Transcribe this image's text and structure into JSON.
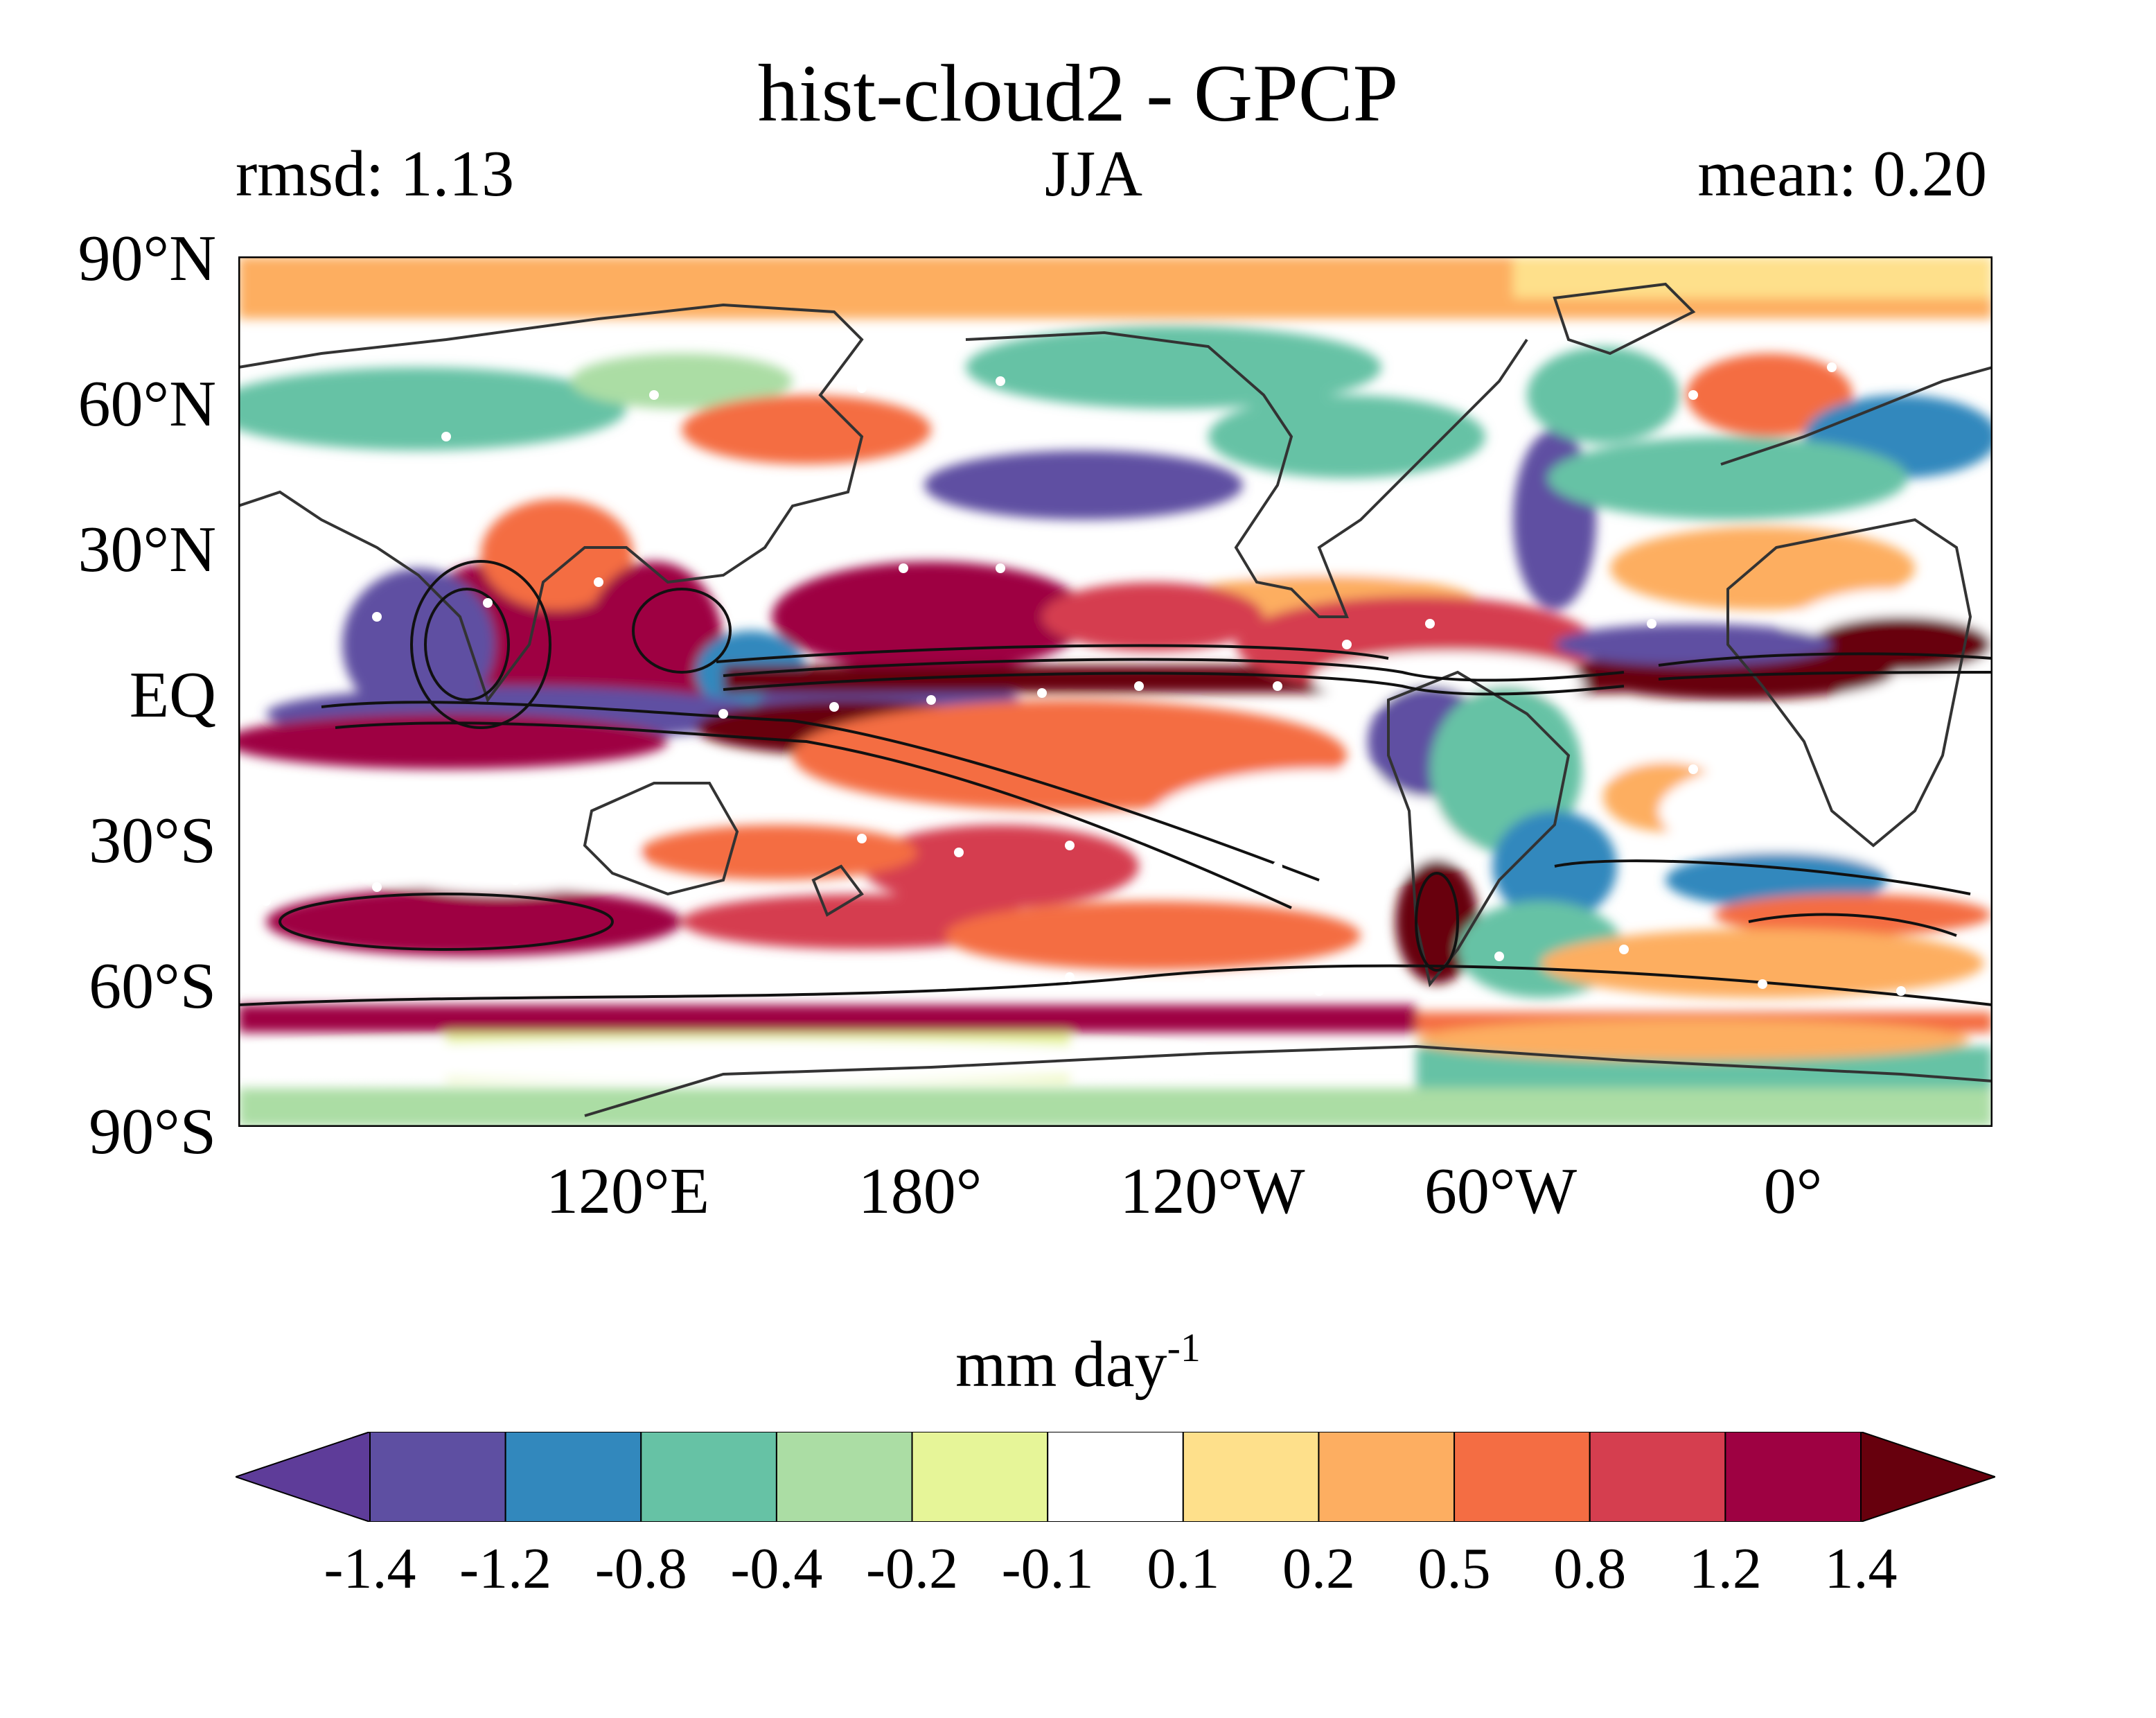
{
  "header": {
    "title": "hist-cloud2 - GPCP",
    "left_stat": "rmsd: 1.13",
    "center": "JJA",
    "right_stat": "mean: 0.20"
  },
  "axes": {
    "y_ticks": [
      "90°N",
      "60°N",
      "30°N",
      "EQ",
      "30°S",
      "60°S",
      "90°S"
    ],
    "x_ticks": [
      "120°E",
      "180°",
      "120°W",
      "60°W",
      "0°"
    ],
    "lon_range_center": 180
  },
  "colorbar": {
    "units_base": "mm day",
    "units_exp": "-1",
    "labels": [
      "-1.4",
      "-1.2",
      "-0.8",
      "-0.4",
      "-0.2",
      "-0.1",
      "0.1",
      "0.2",
      "0.5",
      "0.8",
      "1.2",
      "1.4"
    ],
    "colors": [
      "#5e3c99",
      "#5e4fa2",
      "#3288bd",
      "#66c2a5",
      "#abdda4",
      "#e6f598",
      "#ffffff",
      "#fee08b",
      "#fdae61",
      "#f46d43",
      "#d53e4f",
      "#9e0142",
      "#67000d"
    ],
    "extend": "both"
  },
  "map_colors": {
    "land_outline": "#333333",
    "contour": "#111111",
    "stipple": "#ffffff"
  }
}
